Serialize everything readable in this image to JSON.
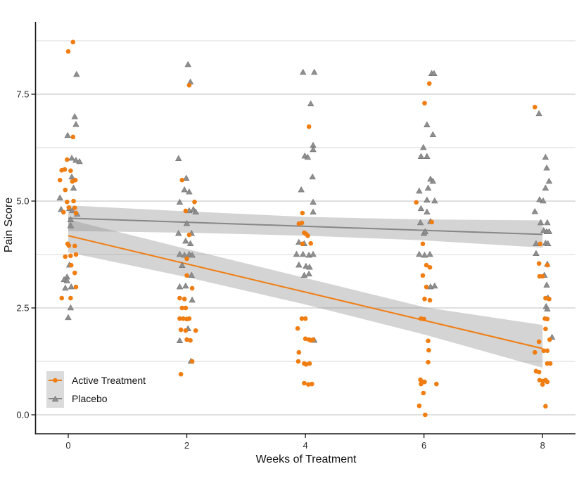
{
  "chart_data": {
    "type": "scatter",
    "title": "",
    "xlabel": "Weeks of Treatment",
    "ylabel": "Pain Score",
    "xlim": [
      -0.55,
      8.6
    ],
    "ylim": [
      -0.44,
      9.2
    ],
    "xticks": [
      0,
      2,
      4,
      6,
      8
    ],
    "yticks": [
      "0.0",
      "2.5",
      "5.0",
      "7.5"
    ],
    "ytick_values": [
      0,
      2.5,
      5,
      7.5
    ],
    "grid": "horizontal-major-and-minor",
    "minor_gridlines": [
      1.25,
      3.75,
      6.25,
      8.75
    ],
    "legend_position": "bottom-left-inside",
    "colors": {
      "active": "#F07D11",
      "placebo_point": "#8F8F8F",
      "placebo_line": "#878787",
      "ci_band": "rgba(143,143,143,0.38)",
      "grid_major": "#BFBFBF",
      "grid_minor": "#D9D9D9",
      "axis": "#1a1a1a",
      "legend_key_bg": "#DBDBDB"
    },
    "series": [
      {
        "name": "Active Treatment",
        "marker": "circle",
        "regression": {
          "x": [
            0,
            8
          ],
          "y": [
            4.19,
            1.55
          ]
        },
        "ci_band": {
          "x": [
            0,
            2,
            4,
            6,
            8
          ],
          "upper": [
            4.57,
            3.88,
            3.2,
            2.52,
            2.1
          ],
          "lower": [
            3.8,
            3.22,
            2.58,
            1.88,
            1.1
          ]
        },
        "points": [
          [
            0.08,
            8.72
          ],
          [
            0.0,
            8.5
          ],
          [
            0.08,
            6.5
          ],
          [
            -0.02,
            5.97
          ],
          [
            -0.11,
            5.72
          ],
          [
            -0.06,
            5.74
          ],
          [
            0.04,
            5.71
          ],
          [
            -0.14,
            5.49
          ],
          [
            0.07,
            5.46
          ],
          [
            0.12,
            5.49
          ],
          [
            -0.05,
            5.26
          ],
          [
            -0.02,
            4.98
          ],
          [
            0.09,
            5.0
          ],
          [
            0.01,
            4.85
          ],
          [
            0.11,
            4.84
          ],
          [
            -0.08,
            4.74
          ],
          [
            0.13,
            4.72
          ],
          [
            -0.01,
            4.0
          ],
          [
            0.01,
            3.96
          ],
          [
            0.11,
            3.95
          ],
          [
            -0.05,
            3.7
          ],
          [
            0.04,
            3.72
          ],
          [
            0.13,
            3.75
          ],
          [
            0.05,
            3.5
          ],
          [
            0.11,
            3.32
          ],
          [
            0.13,
            2.99
          ],
          [
            -0.11,
            2.73
          ],
          [
            0.04,
            2.73
          ],
          [
            2.04,
            7.71
          ],
          [
            1.92,
            5.49
          ],
          [
            2.13,
            4.98
          ],
          [
            1.98,
            4.77
          ],
          [
            2.04,
            4.21
          ],
          [
            2.0,
            3.65
          ],
          [
            2.0,
            3.26
          ],
          [
            2.09,
            2.96
          ],
          [
            1.88,
            2.73
          ],
          [
            1.96,
            2.71
          ],
          [
            1.92,
            2.5
          ],
          [
            1.98,
            2.5
          ],
          [
            1.88,
            2.25
          ],
          [
            1.94,
            2.25
          ],
          [
            2.0,
            2.24
          ],
          [
            2.04,
            2.25
          ],
          [
            1.9,
            1.99
          ],
          [
            1.98,
            1.97
          ],
          [
            2.15,
            1.97
          ],
          [
            2.0,
            1.76
          ],
          [
            2.06,
            1.74
          ],
          [
            2.09,
            1.25
          ],
          [
            1.9,
            0.95
          ],
          [
            4.06,
            6.74
          ],
          [
            3.95,
            4.72
          ],
          [
            3.89,
            4.47
          ],
          [
            3.94,
            4.49
          ],
          [
            3.98,
            4.26
          ],
          [
            4.01,
            4.23
          ],
          [
            4.04,
            4.19
          ],
          [
            3.95,
            4.0
          ],
          [
            4.09,
            4.01
          ],
          [
            3.94,
            2.25
          ],
          [
            4.0,
            2.25
          ],
          [
            3.87,
            2.02
          ],
          [
            4.0,
            1.78
          ],
          [
            4.06,
            1.76
          ],
          [
            4.09,
            1.74
          ],
          [
            4.13,
            1.76
          ],
          [
            3.89,
            1.46
          ],
          [
            3.88,
            1.25
          ],
          [
            3.98,
            1.2
          ],
          [
            4.01,
            1.18
          ],
          [
            4.07,
            1.2
          ],
          [
            3.98,
            0.74
          ],
          [
            4.05,
            0.71
          ],
          [
            4.11,
            0.72
          ],
          [
            6.09,
            7.75
          ],
          [
            6.01,
            7.29
          ],
          [
            5.87,
            4.97
          ],
          [
            6.13,
            4.51
          ],
          [
            5.98,
            4.0
          ],
          [
            6.04,
            3.5
          ],
          [
            6.1,
            3.45
          ],
          [
            5.98,
            3.26
          ],
          [
            6.04,
            2.99
          ],
          [
            6.01,
            2.71
          ],
          [
            6.1,
            2.68
          ],
          [
            5.95,
            2.25
          ],
          [
            6.0,
            2.24
          ],
          [
            6.07,
            1.73
          ],
          [
            6.08,
            1.51
          ],
          [
            6.07,
            1.23
          ],
          [
            5.94,
            0.82
          ],
          [
            5.98,
            0.77
          ],
          [
            6.01,
            0.77
          ],
          [
            5.95,
            0.72
          ],
          [
            6.21,
            0.72
          ],
          [
            5.99,
            0.51
          ],
          [
            5.92,
            0.21
          ],
          [
            6.02,
            0.0
          ],
          [
            7.87,
            7.2
          ],
          [
            7.96,
            4.0
          ],
          [
            7.94,
            3.54
          ],
          [
            8.08,
            3.5
          ],
          [
            7.95,
            3.24
          ],
          [
            8.0,
            3.24
          ],
          [
            8.05,
            2.73
          ],
          [
            8.11,
            2.71
          ],
          [
            8.04,
            2.25
          ],
          [
            8.08,
            2.24
          ],
          [
            8.05,
            2.01
          ],
          [
            8.12,
            1.76
          ],
          [
            7.94,
            1.71
          ],
          [
            7.87,
            1.46
          ],
          [
            8.02,
            1.5
          ],
          [
            8.08,
            1.5
          ],
          [
            8.08,
            1.2
          ],
          [
            8.13,
            1.2
          ],
          [
            7.89,
            1.02
          ],
          [
            7.94,
            1.0
          ],
          [
            7.95,
            0.81
          ],
          [
            8.01,
            0.79
          ],
          [
            8.05,
            0.81
          ],
          [
            8.08,
            0.77
          ],
          [
            8.0,
            0.71
          ],
          [
            8.05,
            0.2
          ]
        ]
      },
      {
        "name": "Placebo",
        "marker": "triangle",
        "regression": {
          "x": [
            0,
            8
          ],
          "y": [
            4.6,
            4.22
          ]
        },
        "ci_band": {
          "x": [
            0,
            2,
            4,
            6,
            8
          ],
          "upper": [
            4.9,
            4.76,
            4.63,
            4.57,
            4.55
          ],
          "lower": [
            4.3,
            4.26,
            4.19,
            4.08,
            3.91
          ]
        },
        "points": [
          [
            0.14,
            7.96
          ],
          [
            0.11,
            6.97
          ],
          [
            0.13,
            6.79
          ],
          [
            -0.01,
            6.53
          ],
          [
            0.06,
            6.0
          ],
          [
            0.13,
            5.95
          ],
          [
            0.19,
            5.92
          ],
          [
            0.06,
            5.56
          ],
          [
            0.09,
            5.3
          ],
          [
            -0.14,
            5.07
          ],
          [
            -0.12,
            4.8
          ],
          [
            0.02,
            4.82
          ],
          [
            0.07,
            4.77
          ],
          [
            0.15,
            4.69
          ],
          [
            0.04,
            4.56
          ],
          [
            0.04,
            4.42
          ],
          [
            0.02,
            3.5
          ],
          [
            -0.02,
            3.22
          ],
          [
            -0.07,
            3.16
          ],
          [
            -0.02,
            3.13
          ],
          [
            -0.05,
            2.96
          ],
          [
            0.05,
            2.99
          ],
          [
            0.04,
            2.5
          ],
          [
            0.0,
            2.27
          ],
          [
            2.02,
            8.19
          ],
          [
            2.06,
            7.78
          ],
          [
            1.86,
            5.99
          ],
          [
            1.99,
            5.53
          ],
          [
            1.96,
            5.26
          ],
          [
            2.04,
            5.21
          ],
          [
            1.88,
            4.97
          ],
          [
            2.04,
            4.77
          ],
          [
            2.11,
            4.8
          ],
          [
            2.15,
            4.74
          ],
          [
            2.0,
            4.47
          ],
          [
            1.86,
            4.24
          ],
          [
            2.08,
            4.24
          ],
          [
            1.98,
            4.06
          ],
          [
            2.06,
            4.0
          ],
          [
            1.88,
            3.75
          ],
          [
            1.96,
            3.73
          ],
          [
            2.04,
            3.75
          ],
          [
            2.09,
            3.73
          ],
          [
            1.92,
            3.49
          ],
          [
            2.08,
            3.26
          ],
          [
            1.88,
            2.99
          ],
          [
            1.98,
            3.01
          ],
          [
            2.09,
            2.68
          ],
          [
            2.02,
            2.01
          ],
          [
            1.88,
            1.73
          ],
          [
            2.07,
            1.25
          ],
          [
            3.96,
            8.01
          ],
          [
            4.15,
            8.01
          ],
          [
            4.09,
            7.27
          ],
          [
            4.13,
            6.3
          ],
          [
            4.13,
            6.2
          ],
          [
            3.99,
            6.05
          ],
          [
            4.04,
            6.02
          ],
          [
            4.12,
            5.56
          ],
          [
            3.93,
            5.26
          ],
          [
            4.13,
            4.97
          ],
          [
            4.13,
            4.74
          ],
          [
            3.89,
            4.03
          ],
          [
            3.98,
            4.0
          ],
          [
            3.85,
            3.75
          ],
          [
            3.96,
            3.75
          ],
          [
            4.06,
            3.73
          ],
          [
            4.13,
            3.75
          ],
          [
            3.89,
            3.5
          ],
          [
            4.01,
            3.47
          ],
          [
            4.07,
            3.45
          ],
          [
            3.98,
            3.26
          ],
          [
            4.06,
            3.29
          ],
          [
            4.15,
            1.74
          ],
          [
            6.13,
            7.98
          ],
          [
            6.17,
            7.98
          ],
          [
            6.05,
            6.78
          ],
          [
            6.15,
            6.55
          ],
          [
            5.99,
            6.25
          ],
          [
            5.95,
            6.04
          ],
          [
            6.05,
            6.04
          ],
          [
            6.11,
            5.51
          ],
          [
            6.15,
            5.46
          ],
          [
            5.92,
            5.23
          ],
          [
            6.07,
            5.3
          ],
          [
            6.05,
            5.02
          ],
          [
            6.18,
            5.0
          ],
          [
            5.95,
            4.82
          ],
          [
            6.05,
            4.74
          ],
          [
            5.94,
            4.49
          ],
          [
            6.11,
            4.52
          ],
          [
            6.0,
            4.24
          ],
          [
            6.02,
            4.28
          ],
          [
            5.92,
            3.75
          ],
          [
            6.01,
            3.73
          ],
          [
            6.1,
            3.75
          ],
          [
            6.11,
            2.99
          ],
          [
            6.18,
            3.01
          ],
          [
            7.94,
            7.04
          ],
          [
            8.05,
            6.02
          ],
          [
            8.07,
            5.77
          ],
          [
            8.11,
            5.46
          ],
          [
            8.05,
            5.3
          ],
          [
            7.95,
            5.03
          ],
          [
            8.01,
            5.0
          ],
          [
            7.87,
            4.75
          ],
          [
            7.97,
            4.49
          ],
          [
            8.08,
            4.49
          ],
          [
            8.02,
            4.31
          ],
          [
            8.07,
            4.28
          ],
          [
            8.11,
            4.28
          ],
          [
            7.89,
            4.0
          ],
          [
            8.05,
            4.01
          ],
          [
            8.09,
            4.0
          ],
          [
            7.89,
            3.77
          ],
          [
            8.08,
            3.52
          ],
          [
            8.03,
            3.26
          ],
          [
            8.07,
            3.03
          ],
          [
            8.09,
            2.73
          ],
          [
            8.06,
            2.53
          ],
          [
            8.08,
            2.47
          ],
          [
            8.16,
            1.81
          ]
        ]
      }
    ]
  }
}
